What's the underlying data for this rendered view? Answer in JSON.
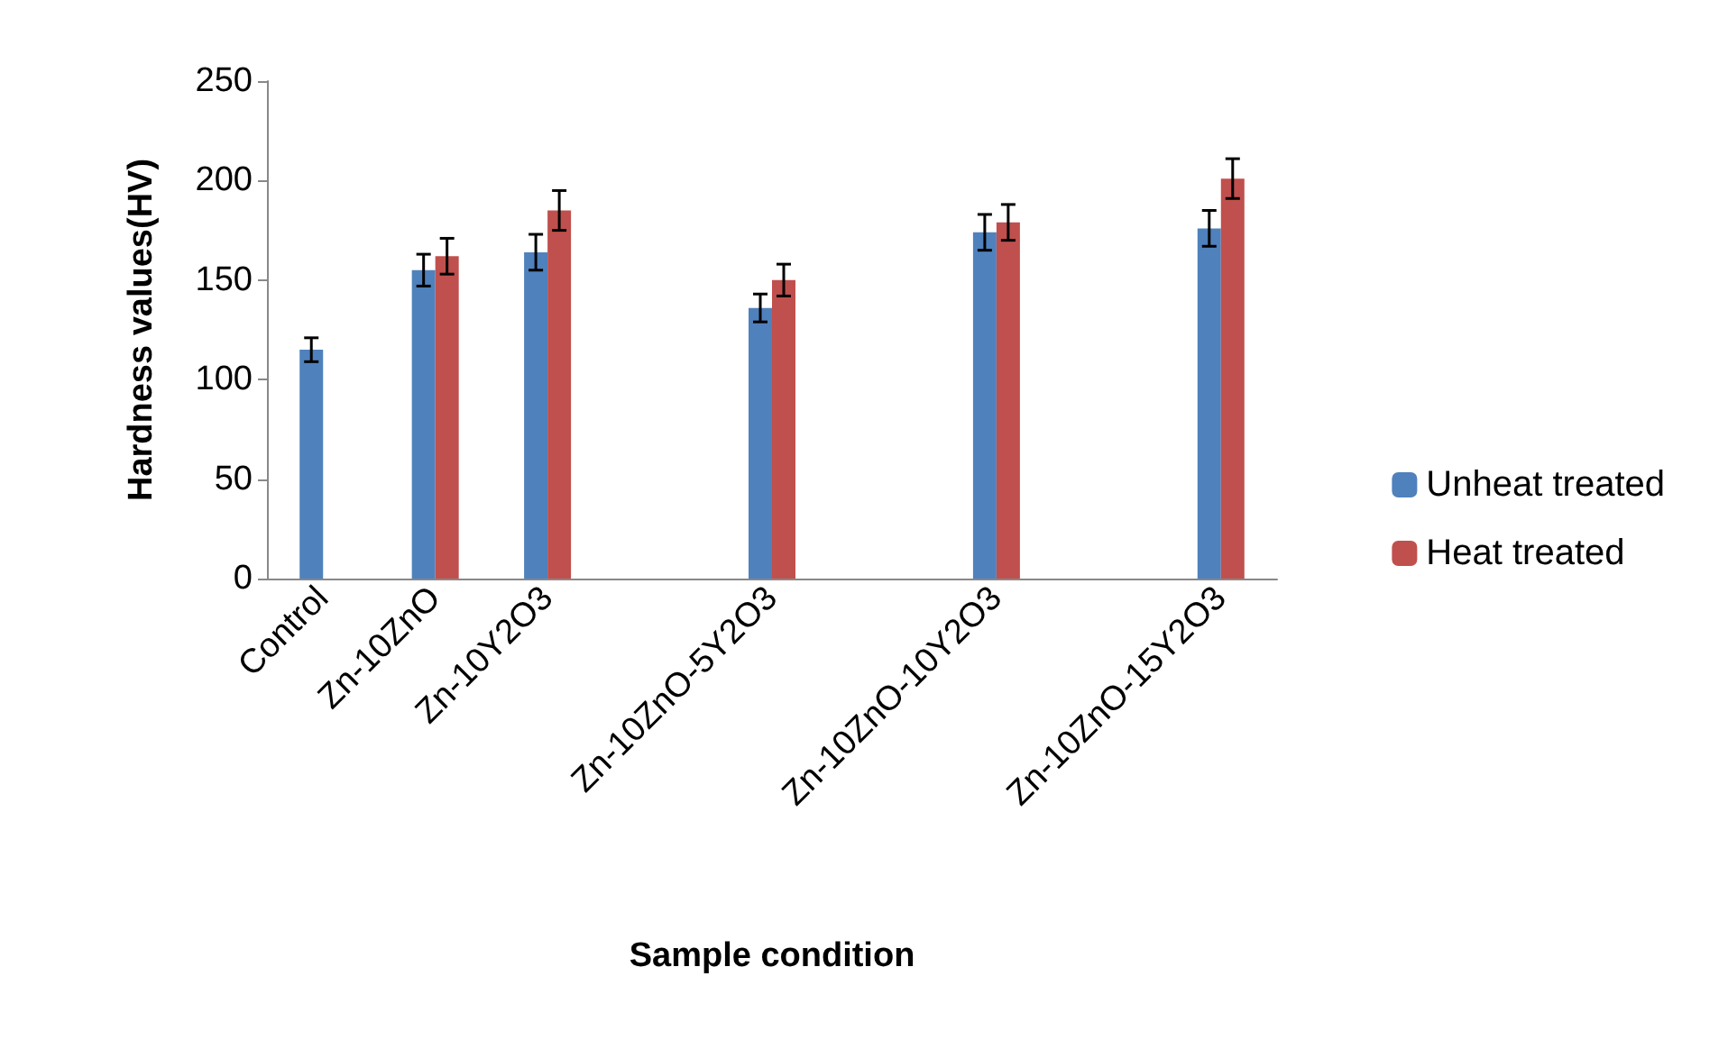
{
  "chart_data": {
    "type": "bar",
    "xlabel": "Sample condition",
    "ylabel": "Hardness values(HV)",
    "categories": [
      "Control",
      "Zn-10ZnO",
      "Zn-10Y2O3",
      null,
      "Zn-10ZnO-5Y2O3",
      null,
      "Zn-10ZnO-10Y2O3",
      null,
      "Zn-10ZnO-15Y2O3"
    ],
    "series": [
      {
        "name": "Unheat treated",
        "color": "#4f81bd",
        "values": [
          115,
          155,
          164,
          null,
          136,
          null,
          174,
          null,
          176
        ],
        "errors": [
          6,
          8,
          9,
          null,
          7,
          null,
          9,
          null,
          9
        ]
      },
      {
        "name": "Heat treated",
        "color": "#c0504d",
        "values": [
          null,
          162,
          185,
          null,
          150,
          null,
          179,
          null,
          201
        ],
        "errors": [
          null,
          9,
          10,
          null,
          8,
          null,
          9,
          null,
          10
        ]
      }
    ],
    "ylim": [
      0,
      250
    ],
    "yticks": [
      0,
      50,
      100,
      150,
      200,
      250
    ],
    "grid": false,
    "legend": "right"
  }
}
